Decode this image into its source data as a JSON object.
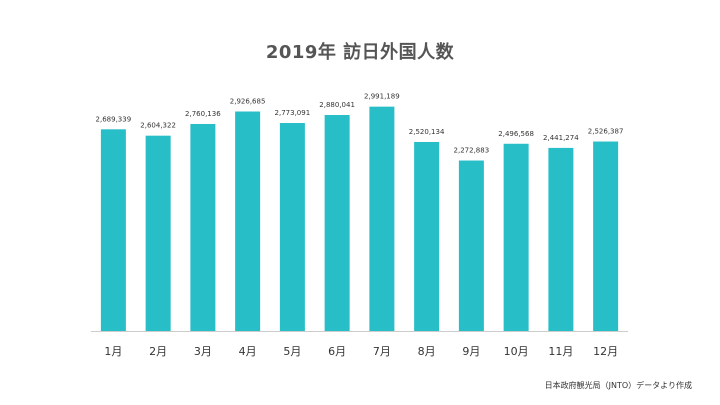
{
  "colors": {
    "bar": "#27BEC8",
    "title": "#555555",
    "tick_label": "#333333",
    "value_label": "#333333",
    "baseline": "#CCCCCC"
  },
  "chart_data": {
    "type": "bar",
    "title": "2019年 訪日外国人数",
    "xlabel": "",
    "ylabel": "",
    "categories": [
      "1月",
      "2月",
      "3月",
      "4月",
      "5月",
      "6月",
      "7月",
      "8月",
      "9月",
      "10月",
      "11月",
      "12月"
    ],
    "values": [
      2689339,
      2604322,
      2760136,
      2926685,
      2773091,
      2880041,
      2991189,
      2520134,
      2272883,
      2496568,
      2441274,
      2526387
    ],
    "value_labels": [
      "2,689,339",
      "2,604,322",
      "2,760,136",
      "2,926,685",
      "2,773,091",
      "2,880,041",
      "2,991,189",
      "2,520,134",
      "2,272,883",
      "2,496,568",
      "2,441,274",
      "2,526,387"
    ],
    "ylim": [
      0,
      3200000
    ],
    "grid": false,
    "legend": "none",
    "source_note": "日本政府観光局（JNTO）データより作成"
  }
}
